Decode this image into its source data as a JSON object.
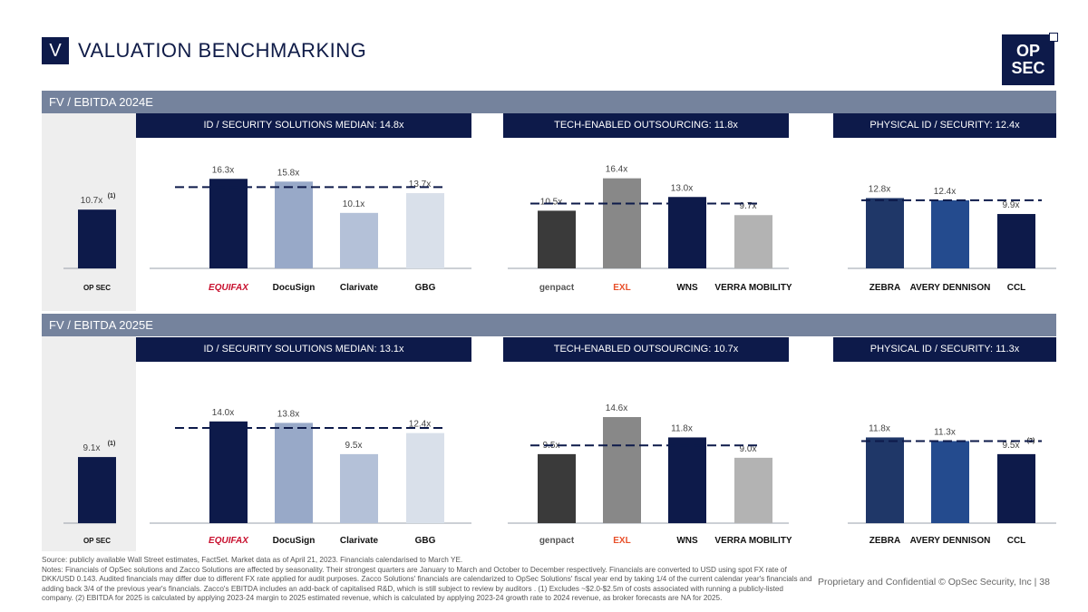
{
  "header": {
    "section_letter": "V",
    "title": "VALUATION BENCHMARKING",
    "logo_line1": "OP",
    "logo_line2": "SEC"
  },
  "panels": [
    {
      "band_label": "FV / EBITDA 2024E",
      "group_headers": [
        "ID / SECURITY SOLUTIONS MEDIAN: 14.8x",
        "TECH-ENABLED OUTSOURCING: 11.8x",
        "PHYSICAL ID / SECURITY: 12.4x"
      ]
    },
    {
      "band_label": "FV / EBITDA 2025E",
      "group_headers": [
        "ID / SECURITY SOLUTIONS MEDIAN: 13.1x",
        "TECH-ENABLED OUTSOURCING: 10.7x",
        "PHYSICAL ID / SECURITY: 11.3x"
      ]
    }
  ],
  "chart_data": [
    {
      "type": "bar",
      "title": "FV / EBITDA 2024E",
      "categories": [
        "OpSec",
        "Equifax",
        "DocuSign",
        "Clarivate",
        "GBG",
        "Genpact",
        "EXL",
        "WNS",
        "Verra Mobility",
        "Zebra",
        "Avery Dennison",
        "CCL"
      ],
      "values": [
        10.7,
        16.3,
        15.8,
        10.1,
        13.7,
        10.5,
        16.4,
        13.0,
        9.7,
        12.8,
        12.4,
        9.9
      ],
      "labels": [
        "10.7x",
        "16.3x",
        "15.8x",
        "10.1x",
        "13.7x",
        "10.5x",
        "16.4x",
        "13.0x",
        "9.7x",
        "12.8x",
        "12.4x",
        "9.9x"
      ],
      "label_notes": [
        "(1)",
        "",
        "",
        "",
        "",
        "",
        "",
        "",
        "",
        "",
        "",
        ""
      ],
      "groups": [
        {
          "name": "ID / Security Solutions",
          "members": [
            1,
            2,
            3,
            4
          ],
          "median": 14.8
        },
        {
          "name": "Tech-Enabled Outsourcing",
          "members": [
            5,
            6,
            7,
            8
          ],
          "median": 11.8
        },
        {
          "name": "Physical ID / Security",
          "members": [
            9,
            10,
            11
          ],
          "median": 12.4
        }
      ],
      "ylim": [
        0,
        17.5
      ]
    },
    {
      "type": "bar",
      "title": "FV / EBITDA 2025E",
      "categories": [
        "OpSec",
        "Equifax",
        "DocuSign",
        "Clarivate",
        "GBG",
        "Genpact",
        "EXL",
        "WNS",
        "Verra Mobility",
        "Zebra",
        "Avery Dennison",
        "CCL"
      ],
      "values": [
        9.1,
        14.0,
        13.8,
        9.5,
        12.4,
        9.5,
        14.6,
        11.8,
        9.0,
        11.8,
        11.3,
        9.5
      ],
      "labels": [
        "9.1x",
        "14.0x",
        "13.8x",
        "9.5x",
        "12.4x",
        "9.5x",
        "14.6x",
        "11.8x",
        "9.0x",
        "11.8x",
        "11.3x",
        "9.5x"
      ],
      "label_notes": [
        "(1)",
        "",
        "",
        "",
        "",
        "",
        "",
        "",
        "",
        "",
        "",
        "(2)"
      ],
      "groups": [
        {
          "name": "ID / Security Solutions",
          "members": [
            1,
            2,
            3,
            4
          ],
          "median": 13.1
        },
        {
          "name": "Tech-Enabled Outsourcing",
          "members": [
            5,
            6,
            7,
            8
          ],
          "median": 10.7
        },
        {
          "name": "Physical ID / Security",
          "members": [
            9,
            10,
            11
          ],
          "median": 11.3
        }
      ],
      "ylim": [
        0,
        15.6
      ]
    }
  ],
  "company_logos": [
    "OP SEC",
    "EQUIFAX",
    "DocuSign",
    "Clarivate",
    "GBG",
    "genpact",
    "EXL",
    "WNS",
    "VERRA MOBILITY",
    "ZEBRA",
    "AVERY DENNISON",
    "CCL"
  ],
  "colors": {
    "navy": "#0d1a4a",
    "band": "#75839d",
    "opsec": "#0d1a4a",
    "equifax": "#0d1a4a",
    "docusign": "#98a9c8",
    "clarivate": "#b4c1d8",
    "gbg": "#d9e0ea",
    "genpact": "#3a3a3a",
    "exl": "#888888",
    "wns": "#0d1a4a",
    "verra": "#b3b3b3",
    "zebra": "#1f3768",
    "avery": "#244b8e",
    "ccl": "#0d1a4a"
  },
  "footer": {
    "source": "Source: publicly available Wall Street estimates, FactSet. Market data as of April 21, 2023. Financials calendarised to March YE.",
    "notes": "Notes: Financials of OpSec solutions and Zacco Solutions are affected by seasonality. Their strongest quarters are January to March and October to December respectively. Financials are converted to USD using spot FX rate of DKK/USD 0.143. Audited financials may differ due to different FX rate applied for audit purposes. Zacco Solutions' financials are calendarized to OpSec Solutions' fiscal year end by taking 1/4 of the current calendar year's financials and adding back 3/4 of the previous year's financials. Zacco's EBITDA includes an add-back of capitalised R&D, which is still subject to review by auditors . (1) Excludes ~$2.0-$2.5m of costs associated with running a publicly-listed company. (2) EBITDA for 2025 is calculated by applying 2023-24 margin to 2025 estimated revenue, which is calculated by applying 2023-24 growth rate to 2024 revenue, as broker forecasts are NA for 2025.",
    "confidential": "Proprietary and Confidential © OpSec Security, Inc  |  38"
  }
}
